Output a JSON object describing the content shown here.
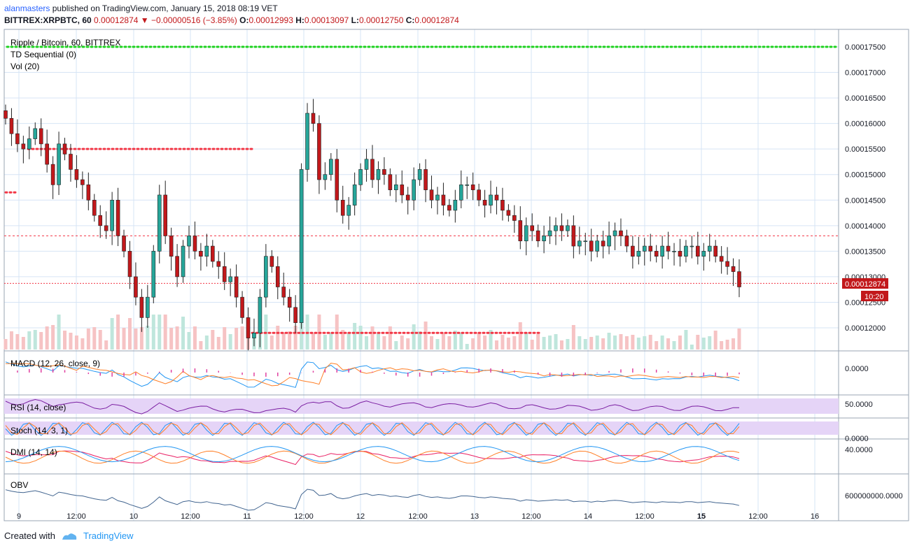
{
  "header": {
    "author": "alanmasters",
    "published_text": "published on TradingView.com, January 15, 2018 08:19 VET",
    "symbol": "BITTREX:XRPBTC, 60",
    "last": "0.00012874",
    "change_arrow": "▼",
    "change": "−0.00000516 (−3.85%)",
    "o_label": "O:",
    "o": "0.00012993",
    "h_label": "H:",
    "h": "0.00013097",
    "l_label": "L:",
    "l": "0.00012750",
    "c_label": "C:",
    "c": "0.00012874"
  },
  "legend": {
    "main": "Ripple / Bitcoin, 60, BITTREX",
    "td": "TD Sequential (0)",
    "vol": "Vol (20)"
  },
  "panes": {
    "macd": "MACD (12, 26, close, 9)",
    "rsi": "RSI (14, close)",
    "stoch": "Stoch (14, 3, 1)",
    "dmi": "DMI (14, 14)",
    "obv": "OBV"
  },
  "price_badge": {
    "value": "0.00012874",
    "countdown": "10:20"
  },
  "footer": {
    "created_with": "Created with",
    "brand": "TradingView"
  },
  "colors": {
    "up": "#26a69a",
    "down": "#c2181b",
    "green_dots": "#1fd21f",
    "red_dots": "#f23645",
    "grid": "#d6e4f5",
    "macd_line": "#2196f3",
    "signal_line": "#ff7f27",
    "rsi_line": "#7b1fa2",
    "rsi_band": "#e5d4f7"
  },
  "chart_data": {
    "type": "candlestick",
    "price_axis": {
      "labels": [
        "0.00017500",
        "0.00017000",
        "0.00016500",
        "0.00016000",
        "0.00015500",
        "0.00015000",
        "0.00014500",
        "0.00014000",
        "0.00013500",
        "0.00013000",
        "0.00012500",
        "0.00012000"
      ],
      "values": [
        0.000175,
        0.00017,
        0.000165,
        0.00016,
        0.000155,
        0.00015,
        0.000145,
        0.00014,
        0.000135,
        0.00013,
        0.000125,
        0.00012
      ]
    },
    "time_axis": [
      "9",
      "12:00",
      "10",
      "12:00",
      "11",
      "12:00",
      "12",
      "12:00",
      "13",
      "12:00",
      "14",
      "12:00",
      "15",
      "12:00",
      "16"
    ],
    "time_axis_bold": [
      false,
      false,
      false,
      false,
      false,
      false,
      false,
      false,
      false,
      false,
      false,
      false,
      true,
      false,
      false
    ],
    "levels": [
      {
        "name": "green-dots",
        "value": 0.000175
      },
      {
        "name": "red-dots-1",
        "value": 0.000155
      },
      {
        "name": "red-dots-2",
        "value": 0.0001465
      },
      {
        "name": "red-dashed-1",
        "value": 0.000138
      },
      {
        "name": "red-dashed-2",
        "value": 0.0001287
      },
      {
        "name": "red-dots-3",
        "value": 0.000119
      }
    ],
    "closes": [
      0.000161,
      0.000158,
      0.000156,
      0.000155,
      0.000157,
      0.000159,
      0.000156,
      0.000152,
      0.000148,
      0.000156,
      0.000154,
      0.000151,
      0.000149,
      0.000148,
      0.000145,
      0.000142,
      0.00014,
      0.000139,
      0.000145,
      0.000138,
      0.000135,
      0.00013,
      0.000126,
      0.000122,
      0.000126,
      0.000135,
      0.000146,
      0.000138,
      0.000134,
      0.00013,
      0.000136,
      0.000138,
      0.000135,
      0.000134,
      0.000136,
      0.000133,
      0.000132,
      0.000129,
      0.00013,
      0.000126,
      0.000122,
      0.000118,
      0.000119,
      0.000126,
      0.000134,
      0.000132,
      0.000128,
      0.000126,
      0.000124,
      0.000121,
      0.000151,
      0.000162,
      0.00016,
      0.000149,
      0.00015,
      0.000153,
      0.000145,
      0.000142,
      0.000144,
      0.000148,
      0.000151,
      0.000153,
      0.000149,
      0.000151,
      0.00015,
      0.000147,
      0.000148,
      0.000146,
      0.000145,
      0.000149,
      0.000151,
      0.000147,
      0.000145,
      0.000146,
      0.000144,
      0.000143,
      0.000145,
      0.000148,
      0.000148,
      0.000147,
      0.000145,
      0.000144,
      0.000146,
      0.000145,
      0.000143,
      0.000142,
      0.000141,
      0.000137,
      0.00014,
      0.000139,
      0.000137,
      0.000138,
      0.000139,
      0.00014,
      0.000139,
      0.00014,
      0.000136,
      0.000137,
      0.000137,
      0.000135,
      0.000137,
      0.000136,
      0.000138,
      0.000139,
      0.000138,
      0.000136,
      0.000134,
      0.000135,
      0.000136,
      0.000135,
      0.000134,
      0.000136,
      0.000135,
      0.000135,
      0.000134,
      0.000136,
      0.000136,
      0.000134,
      0.000135,
      0.000136,
      0.000134,
      0.000133,
      0.000132,
      0.000131,
      0.000128
    ],
    "macd_labels": [
      "0.0000"
    ],
    "rsi_labels": [
      "50.0000"
    ],
    "stoch_labels": [
      "0.0000"
    ],
    "dmi_labels": [
      "40.0000"
    ],
    "obv_labels": [
      "600000000.0000"
    ]
  }
}
